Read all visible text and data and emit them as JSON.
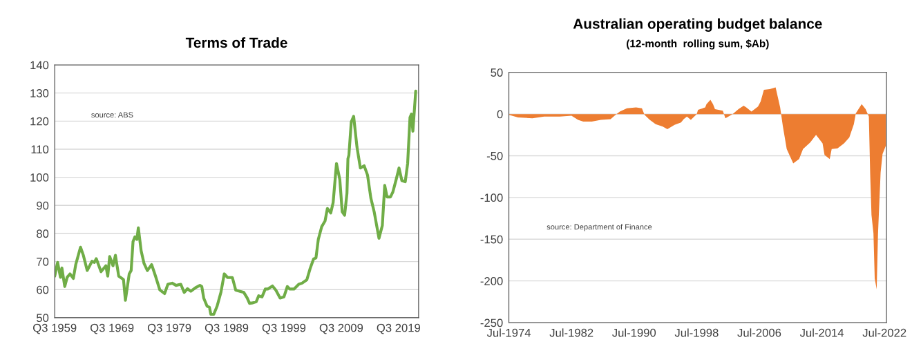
{
  "chart_data": [
    {
      "type": "line",
      "title": "Terms of Trade",
      "color": "#70ad47",
      "grid": "y",
      "annotations": [
        "source: ABS"
      ],
      "x": [
        "1959-07",
        "1960-01",
        "1960-07",
        "1960-10",
        "1961-04",
        "1961-09",
        "1962-03",
        "1962-10",
        "1963-03",
        "1964-01",
        "1964-07",
        "1965-03",
        "1966-01",
        "1966-06",
        "1966-10",
        "1967-08",
        "1968-06",
        "1968-10",
        "1969-02",
        "1969-09",
        "1970-02",
        "1970-09",
        "1971-07",
        "1971-11",
        "1972-07",
        "1972-11",
        "1973-03",
        "1973-07",
        "1973-11",
        "1974-02",
        "1974-08",
        "1975-02",
        "1975-09",
        "1976-06",
        "1977-02",
        "1977-11",
        "1978-09",
        "1979-04",
        "1980-01",
        "1980-09",
        "1981-07",
        "1982-02",
        "1982-09",
        "1983-04",
        "1984-02",
        "1984-11",
        "1985-03",
        "1985-07",
        "1986-02",
        "1986-07",
        "1986-10",
        "1987-04",
        "1987-11",
        "1988-07",
        "1989-02",
        "1989-09",
        "1990-07",
        "1991-02",
        "1991-11",
        "1992-07",
        "1993-02",
        "1993-07",
        "1994-02",
        "1994-09",
        "1995-02",
        "1995-09",
        "1996-04",
        "1996-09",
        "1997-07",
        "1998-02",
        "1998-11",
        "1999-07",
        "2000-02",
        "2000-07",
        "2001-04",
        "2002-02",
        "2002-09",
        "2003-07",
        "2004-02",
        "2004-09",
        "2005-02",
        "2005-07",
        "2006-02",
        "2006-09",
        "2007-02",
        "2007-09",
        "2008-02",
        "2008-09",
        "2009-04",
        "2009-09",
        "2010-02",
        "2010-07",
        "2010-09",
        "2010-11",
        "2011-04",
        "2011-09",
        "2012-04",
        "2012-11",
        "2013-07",
        "2014-02",
        "2014-09",
        "2015-04",
        "2016-02",
        "2016-09",
        "2017-02",
        "2017-07",
        "2018-02",
        "2018-07",
        "2019-02",
        "2019-08",
        "2020-02",
        "2020-09",
        "2021-02",
        "2021-07",
        "2021-10",
        "2022-01",
        "2022-07"
      ],
      "values": [
        64.8,
        69.7,
        64.4,
        67.7,
        61.1,
        64.4,
        65.6,
        64.0,
        68.9,
        75.1,
        72.2,
        66.8,
        70.1,
        69.7,
        71.0,
        66.4,
        68.5,
        64.8,
        71.8,
        68.5,
        72.2,
        64.8,
        63.6,
        56.2,
        65.6,
        66.8,
        77.1,
        78.8,
        77.9,
        82.0,
        73.8,
        69.3,
        66.8,
        68.9,
        64.8,
        59.9,
        58.6,
        61.9,
        62.3,
        61.5,
        61.9,
        59.0,
        60.3,
        59.4,
        60.7,
        61.5,
        61.1,
        57.0,
        54.1,
        53.7,
        51.2,
        51.2,
        54.1,
        59.0,
        65.6,
        64.3,
        64.3,
        59.8,
        59.4,
        59.0,
        57.0,
        55.1,
        55.3,
        55.7,
        57.8,
        57.4,
        60.2,
        60.2,
        61.3,
        59.8,
        57.0,
        57.4,
        61.1,
        60.2,
        60.2,
        61.9,
        62.3,
        63.5,
        67.6,
        70.9,
        71.3,
        77.9,
        82.4,
        84.4,
        88.9,
        87.3,
        91.0,
        104.9,
        99.2,
        87.7,
        86.5,
        94.3,
        106.6,
        107.8,
        119.7,
        121.7,
        110.7,
        103.3,
        104.1,
        100.8,
        92.6,
        87.7,
        78.3,
        82.8,
        97.1,
        93.0,
        93.0,
        94.7,
        99.2,
        103.3,
        98.8,
        98.4,
        104.9,
        121.3,
        122.5,
        116.4,
        130.7
      ],
      "xlim": [
        "1959-07",
        "2023-01"
      ],
      "xticks": [
        {
          "value": "1959-07",
          "label": "Q3 1959"
        },
        {
          "value": "1969-07",
          "label": "Q3 1969"
        },
        {
          "value": "1979-07",
          "label": "Q3 1979"
        },
        {
          "value": "1989-07",
          "label": "Q3 1989"
        },
        {
          "value": "1999-07",
          "label": "Q3 1999"
        },
        {
          "value": "2009-07",
          "label": "Q3 2009"
        },
        {
          "value": "2019-07",
          "label": "Q3 2019"
        }
      ],
      "ylim": [
        50,
        140
      ],
      "yticks": [
        50,
        60,
        70,
        80,
        90,
        100,
        110,
        120,
        130,
        140
      ]
    },
    {
      "type": "area",
      "title": "Australian operating budget balance",
      "subtitle": "(12-month  rolling sum, $Ab)",
      "color": "#ed7d31",
      "grid": "y",
      "annotations": [
        "source: Department of Finance"
      ],
      "x": [
        "1974-07",
        "1975-09",
        "1977-07",
        "1979-01",
        "1981-01",
        "1982-07",
        "1983-05",
        "1984-01",
        "1985-02",
        "1986-04",
        "1987-07",
        "1988-01",
        "1988-09",
        "1989-08",
        "1990-10",
        "1991-07",
        "1991-11",
        "1992-07",
        "1993-04",
        "1994-03",
        "1994-10",
        "1995-09",
        "1996-07",
        "1996-11",
        "1997-04",
        "1997-10",
        "1998-07",
        "1998-09",
        "1999-08",
        "1999-10",
        "2000-04",
        "2000-08",
        "2000-11",
        "2001-11",
        "2002-03",
        "2003-02",
        "2003-11",
        "2004-07",
        "2004-11",
        "2005-07",
        "2006-05",
        "2006-09",
        "2007-02",
        "2007-11",
        "2008-08",
        "2009-03",
        "2009-07",
        "2010-01",
        "2010-11",
        "2011-08",
        "2012-02",
        "2013-01",
        "2013-10",
        "2014-08",
        "2014-11",
        "2015-07",
        "2015-10",
        "2016-07",
        "2017-05",
        "2018-01",
        "2018-08",
        "2018-11",
        "2019-08",
        "2020-02",
        "2020-07",
        "2020-09",
        "2020-11",
        "2021-02",
        "2021-04",
        "2021-07",
        "2021-09",
        "2022-01",
        "2022-04",
        "2022-09"
      ],
      "values": [
        -1,
        -4,
        -5,
        -3,
        -3,
        -2,
        -7,
        -9,
        -9,
        -7,
        -6,
        -2,
        3,
        7,
        8,
        7,
        -1,
        -7,
        -12,
        -15,
        -18,
        -13,
        -10,
        -6,
        -3,
        -7,
        0,
        5,
        8,
        12,
        17,
        12,
        6,
        4,
        -5,
        0,
        6,
        10,
        8,
        3,
        9,
        15,
        29,
        30,
        32,
        8,
        -14,
        -42,
        -59,
        -54,
        -42,
        -34,
        -25,
        -35,
        -49,
        -54,
        -42,
        -41,
        -35,
        -28,
        -12,
        1,
        12,
        6,
        -3,
        -72,
        -121,
        -143,
        -197,
        -210,
        -144,
        -70,
        -48,
        -38
      ],
      "xlim": [
        "1974-07",
        "2022-10"
      ],
      "xticks": [
        {
          "value": "1974-07",
          "label": "Jul-1974"
        },
        {
          "value": "1982-07",
          "label": "Jul-1982"
        },
        {
          "value": "1990-07",
          "label": "Jul-1990"
        },
        {
          "value": "1998-07",
          "label": "Jul-1998"
        },
        {
          "value": "2006-07",
          "label": "Jul-2006"
        },
        {
          "value": "2014-07",
          "label": "Jul-2014"
        },
        {
          "value": "2022-07",
          "label": "Jul-2022"
        }
      ],
      "ylim": [
        -250,
        50
      ],
      "yticks": [
        -250,
        -200,
        -150,
        -100,
        -50,
        0,
        50
      ]
    }
  ]
}
